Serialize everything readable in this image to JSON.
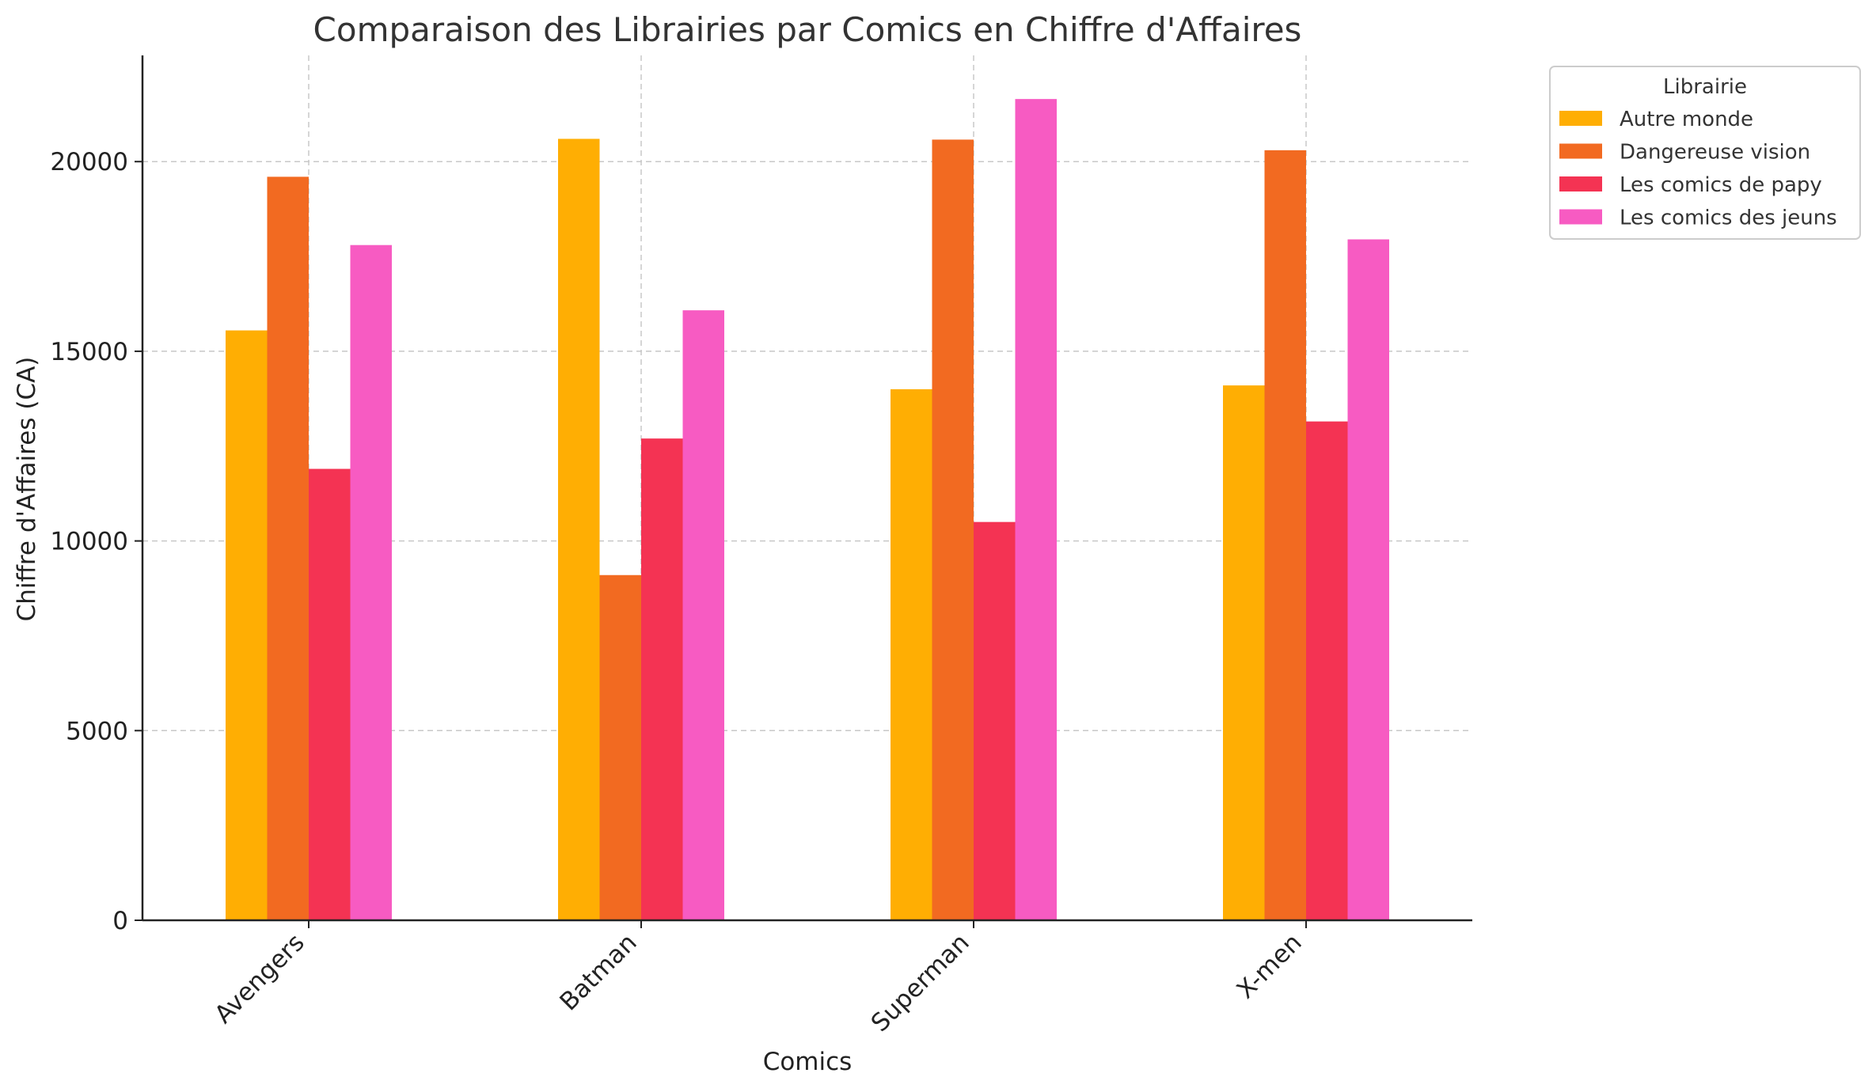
{
  "chart_data": {
    "type": "bar",
    "title": "Comparaison des Librairies par Comics en Chiffre d'Affaires",
    "xlabel": "Comics",
    "ylabel": "Chiffre d'Affaires (CA)",
    "categories": [
      "Avengers",
      "Batman",
      "Superman",
      "X-men"
    ],
    "series": [
      {
        "name": "Autre monde",
        "color": "#FFAE03",
        "values": [
          15550,
          20600,
          14000,
          14100
        ]
      },
      {
        "name": "Dangereuse vision",
        "color": "#F26A21",
        "values": [
          19600,
          9100,
          20580,
          20300
        ]
      },
      {
        "name": "Les comics de papy",
        "color": "#F43353",
        "values": [
          11900,
          12700,
          10500,
          13150
        ]
      },
      {
        "name": "Les comics des jeuns",
        "color": "#F75BC2",
        "values": [
          17800,
          16080,
          21650,
          17950
        ]
      }
    ],
    "ylim": [
      0,
      22800
    ],
    "yticks": [
      0,
      5000,
      10000,
      15000,
      20000
    ],
    "grid": true,
    "legend": {
      "title": "Librairie",
      "placement": "outside-top-right"
    }
  }
}
